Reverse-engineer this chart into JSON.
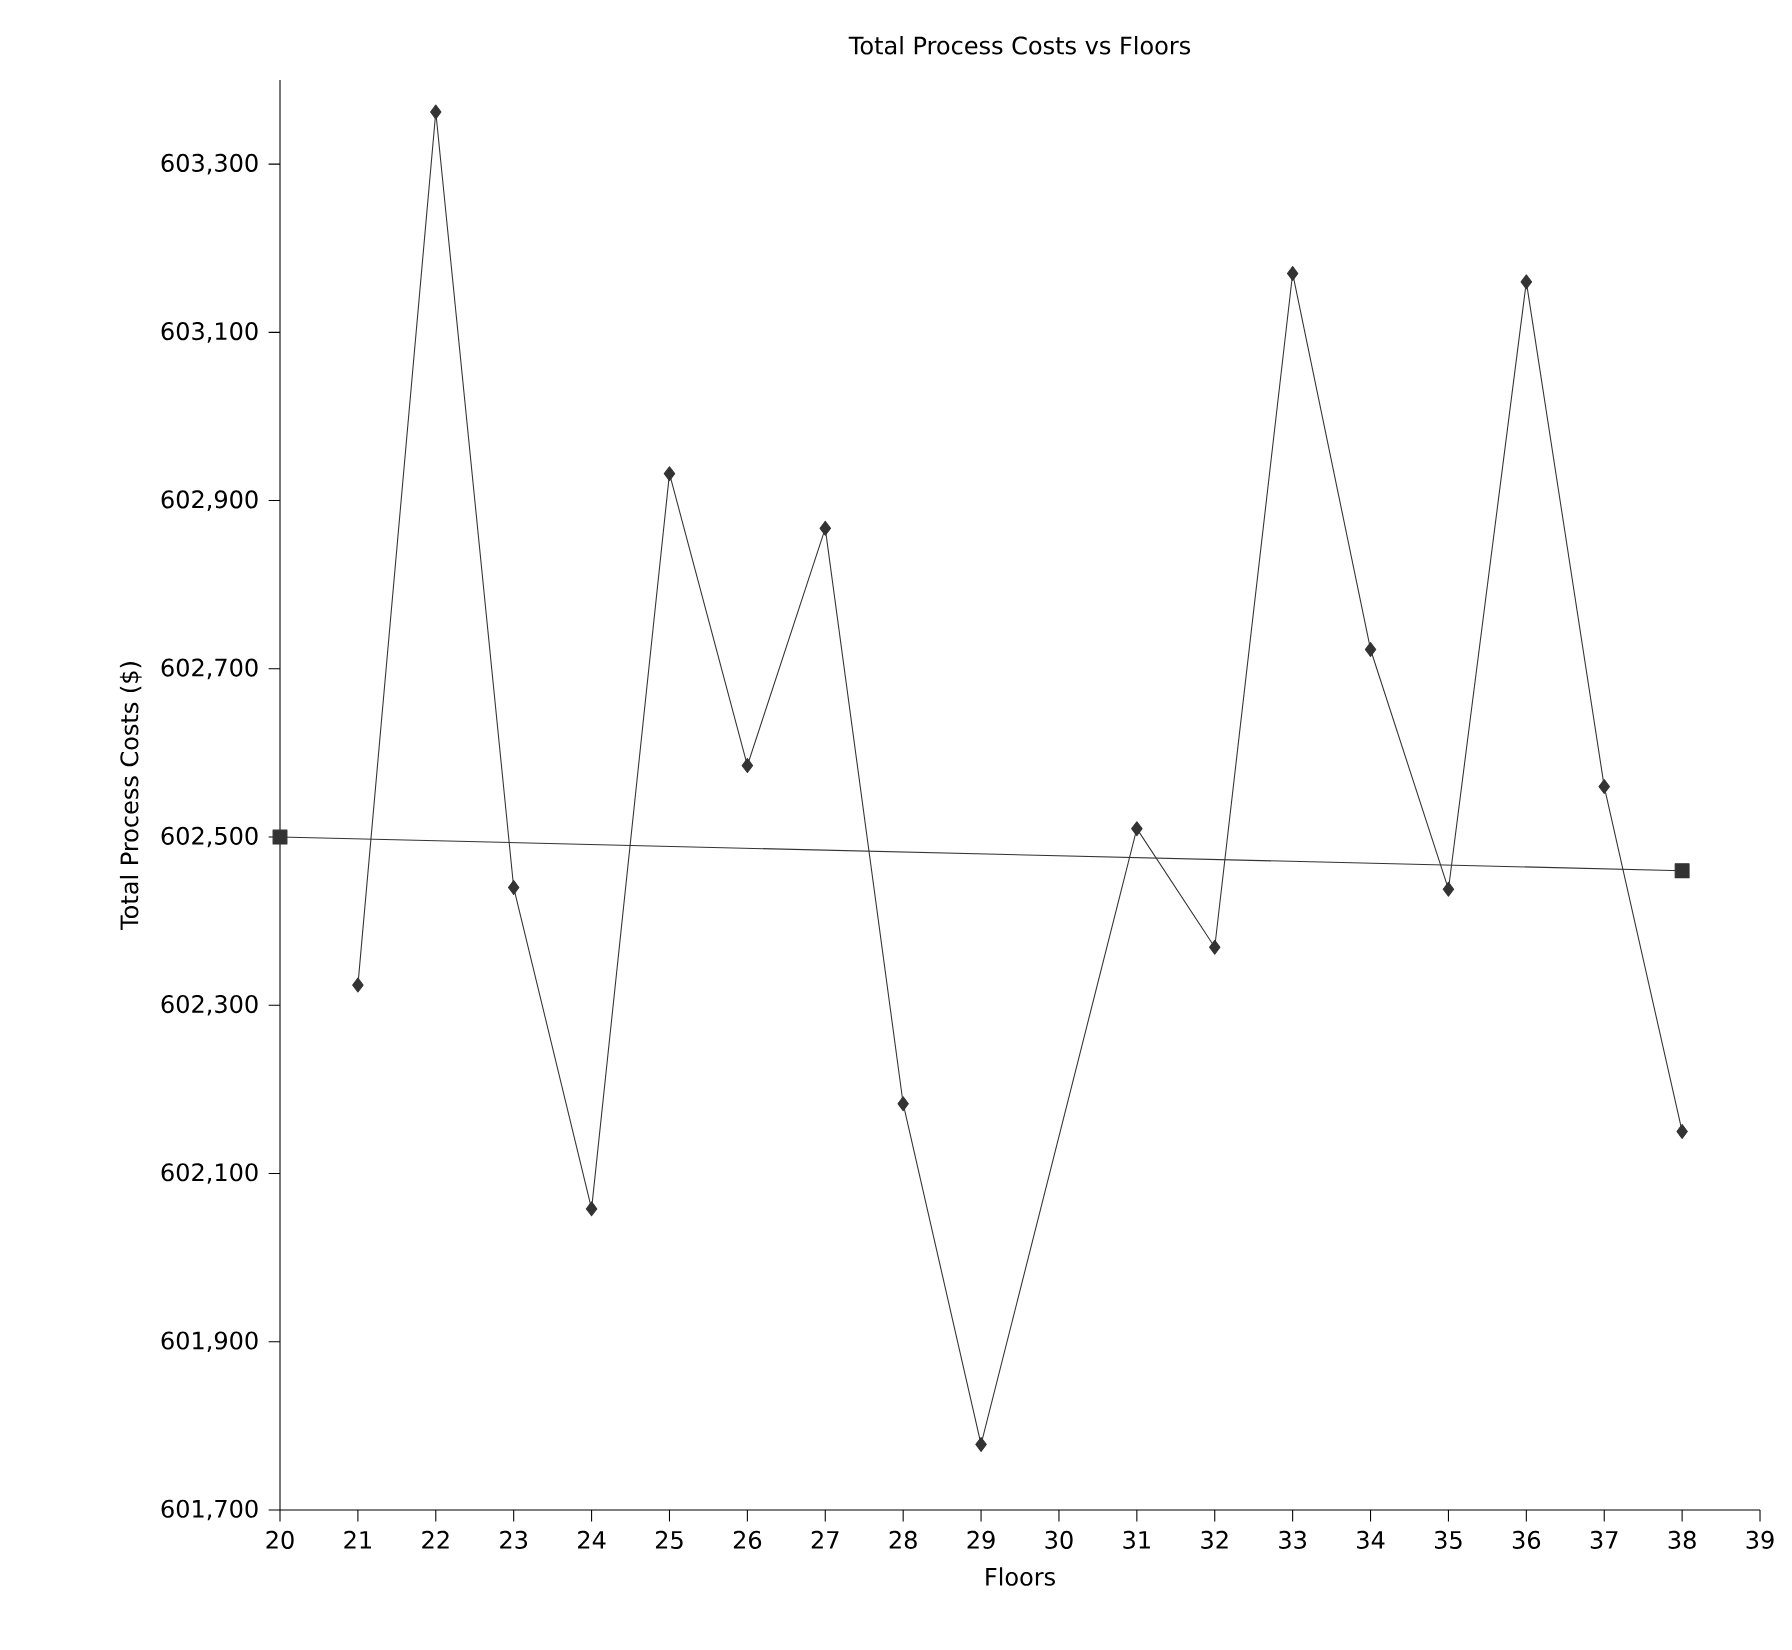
{
  "chart_data": {
    "type": "line",
    "title": "Total Process Costs vs Floors",
    "xlabel": "Floors",
    "ylabel": "Total Process Costs ($)",
    "xlim": [
      20,
      39
    ],
    "xticks": [
      20,
      21,
      22,
      23,
      24,
      25,
      26,
      27,
      28,
      29,
      30,
      31,
      32,
      33,
      34,
      35,
      36,
      37,
      38,
      39
    ],
    "ylim": [
      601700,
      603400
    ],
    "yticks": [
      {
        "value": 601700,
        "label": "601,700"
      },
      {
        "value": 601900,
        "label": "601,900"
      },
      {
        "value": 602100,
        "label": "602,100"
      },
      {
        "value": 602300,
        "label": "602,300"
      },
      {
        "value": 602500,
        "label": "602,500"
      },
      {
        "value": 602700,
        "label": "602,700"
      },
      {
        "value": 602900,
        "label": "602,900"
      },
      {
        "value": 603100,
        "label": "603,100"
      },
      {
        "value": 603300,
        "label": "603,300"
      }
    ],
    "grid": false,
    "series": [
      {
        "color": "#333333",
        "marker": "diamond",
        "x": [
          21,
          22,
          23,
          24,
          25,
          26,
          27,
          28,
          29,
          31,
          32,
          33,
          34,
          35,
          36,
          37,
          38
        ],
        "values": [
          602324,
          603362,
          602440,
          602058,
          602932,
          602585,
          602867,
          602183,
          601778,
          602510,
          602369,
          603170,
          602723,
          602438,
          603160,
          602560,
          602150
        ]
      },
      {
        "color": "#333333",
        "marker": "square",
        "x": [
          20,
          38
        ],
        "values": [
          602500,
          602460
        ]
      }
    ]
  }
}
